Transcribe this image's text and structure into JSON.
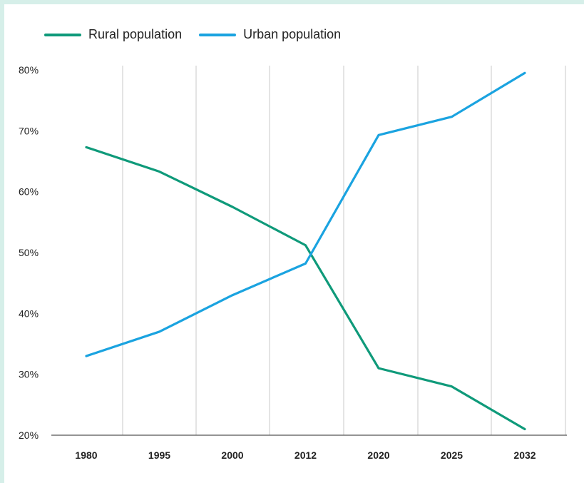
{
  "chart_data": {
    "type": "line",
    "categories": [
      "1980",
      "1995",
      "2000",
      "2012",
      "2020",
      "2025",
      "2032"
    ],
    "series": [
      {
        "name": "Rural population",
        "color": "#0f9a7a",
        "values": [
          67.3,
          63.3,
          57.5,
          51.2,
          31,
          28,
          21
        ]
      },
      {
        "name": "Urban population",
        "color": "#1aa3e0",
        "values": [
          33,
          37,
          43,
          48.2,
          69.3,
          72.3,
          79.5
        ]
      }
    ],
    "ylim": [
      20,
      80
    ],
    "yticks": [
      {
        "value": 20,
        "label": "20%"
      },
      {
        "value": 30,
        "label": "30%"
      },
      {
        "value": 40,
        "label": "40%"
      },
      {
        "value": 50,
        "label": "50%"
      },
      {
        "value": 60,
        "label": "60%"
      },
      {
        "value": 70,
        "label": "70%"
      },
      {
        "value": 80,
        "label": "80%"
      }
    ],
    "grid": "vertical",
    "legend_position": "top-left",
    "gridline_color": "#c8c8c8",
    "axis_color": "#555555"
  }
}
